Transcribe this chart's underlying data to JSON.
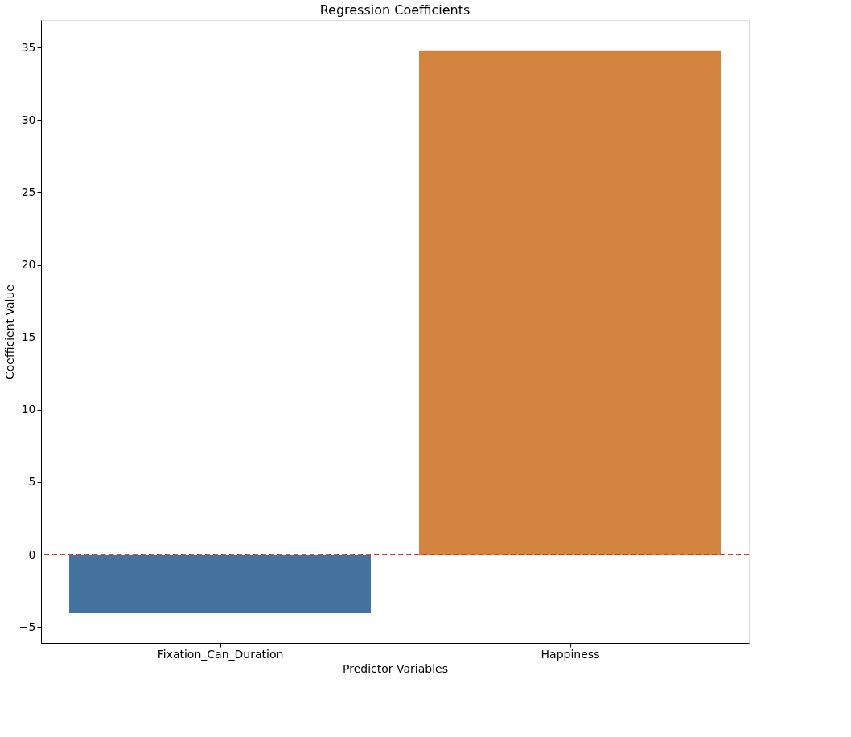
{
  "chart_data": {
    "type": "bar",
    "title": "Regression Coefficients",
    "xlabel": "Predictor Variables",
    "ylabel": "Coefficient Value",
    "categories": [
      "Fixation_Can_Duration",
      "Happiness"
    ],
    "values": [
      -4.05,
      34.8
    ],
    "colors": [
      "#4473a0",
      "#d38540"
    ],
    "ylim": [
      -6.1,
      36.9
    ],
    "yticks": [
      -5,
      0,
      5,
      10,
      15,
      20,
      25,
      30,
      35
    ],
    "ref_lines": [
      {
        "axis": "y",
        "value": 0,
        "color": "#e8372a",
        "line_style": "dashed"
      }
    ],
    "grid": false
  }
}
